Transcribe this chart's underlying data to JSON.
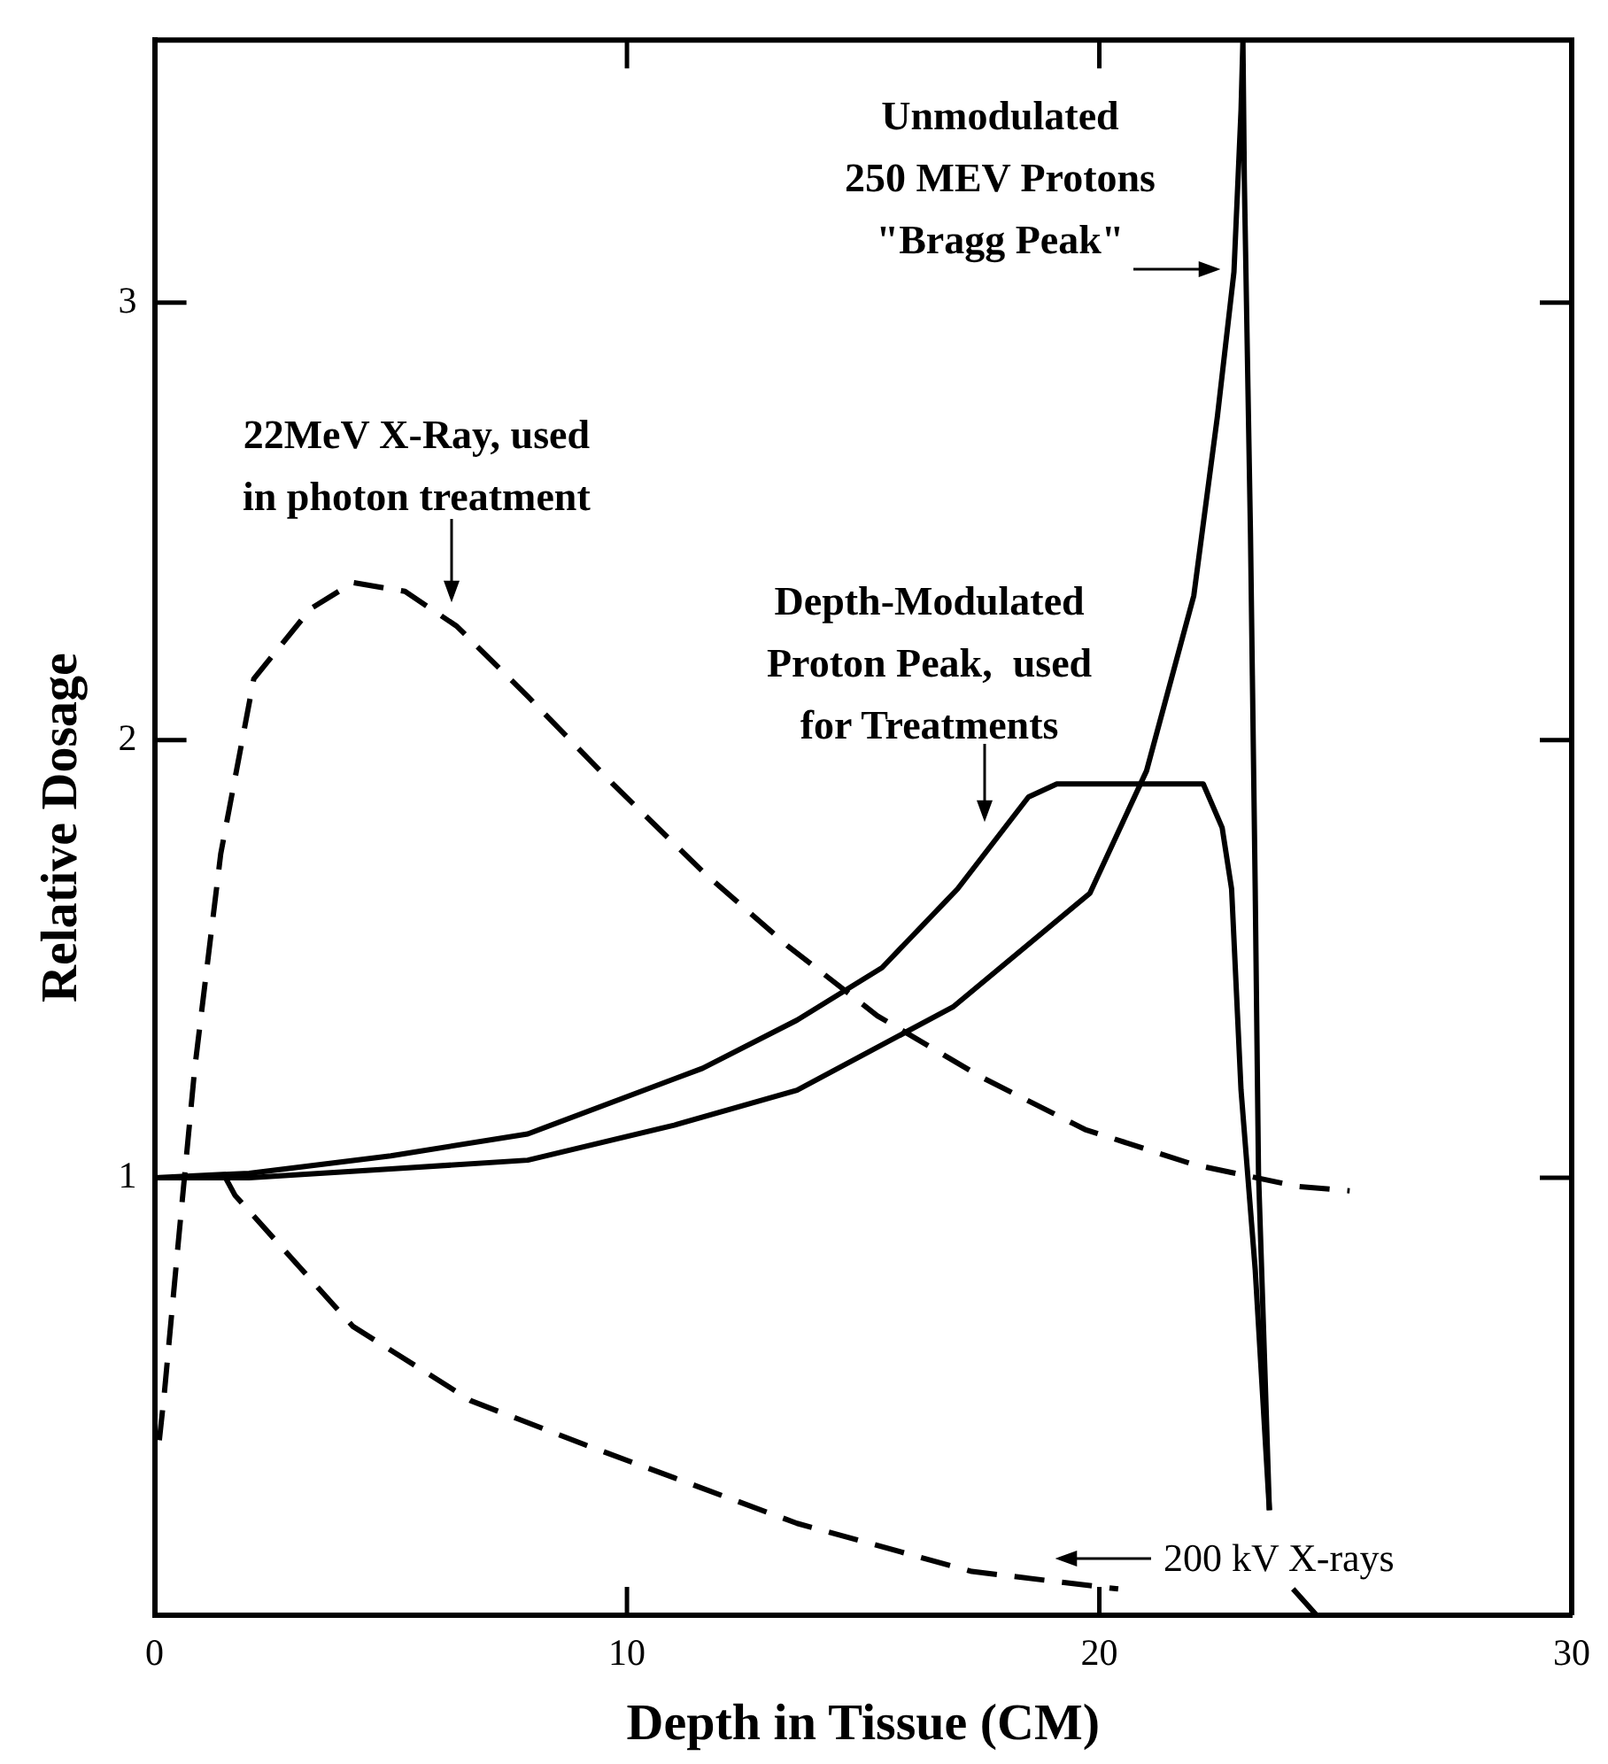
{
  "chart_data": {
    "type": "line",
    "xlabel": "Depth in Tissue (CM)",
    "ylabel": "Relative Dosage",
    "xlim": [
      0,
      30
    ],
    "xticks": [
      0,
      10,
      20,
      30
    ],
    "ylim": [
      0,
      3.6
    ],
    "yticks": [
      1,
      2,
      3
    ],
    "marker": "none",
    "legend": false,
    "series": [
      {
        "color": "#000000",
        "line_style": "dashed",
        "x": [
          0.1,
          0.2,
          0.5,
          0.85,
          1.4,
          2.1,
          3.3,
          4.2,
          5.3,
          6.4,
          7.9,
          9.7,
          11.6,
          13.4,
          15.3,
          17.5,
          19.7,
          22,
          24.2,
          25.3
        ],
        "values": [
          0.4,
          0.5,
          0.85,
          1.25,
          1.74,
          2.14,
          2.3,
          2.36,
          2.34,
          2.26,
          2.1,
          1.9,
          1.7,
          1.53,
          1.37,
          1.23,
          1.11,
          1.03,
          0.98,
          0.97
        ]
      },
      {
        "color": "#000000",
        "line_style": "dashed",
        "x": [
          1.5,
          1.7,
          4.2,
          6.7,
          9.1,
          13.6,
          17.3,
          20.4
        ],
        "values": [
          1.0,
          0.96,
          0.66,
          0.49,
          0.39,
          0.21,
          0.1,
          0.06
        ]
      },
      {
        "color": "#000000",
        "line_style": "solid",
        "x": [
          0,
          2,
          5,
          7.9,
          11,
          13.6,
          16.9,
          19.8,
          21,
          22,
          22.5,
          22.85,
          23,
          23.04,
          23.07,
          23.2,
          23.3,
          23.37,
          23.6,
          23.8,
          24.1,
          24.6
        ],
        "values": [
          1.0,
          1.0,
          1.02,
          1.04,
          1.12,
          1.2,
          1.39,
          1.65,
          1.93,
          2.33,
          2.74,
          3.07,
          3.44,
          3.6,
          3.28,
          2.47,
          1.66,
          1.01,
          0.24,
          null,
          0.06,
          0
        ]
      },
      {
        "color": "#000000",
        "line_style": "solid",
        "x": [
          0,
          2,
          5,
          7.9,
          11.6,
          13.6,
          15.4,
          17,
          18.5,
          19.1,
          22.2,
          22.6,
          22.8,
          23,
          23.3,
          23.6
        ],
        "values": [
          1.0,
          1.01,
          1.05,
          1.1,
          1.25,
          1.36,
          1.48,
          1.66,
          1.87,
          1.9,
          1.9,
          1.8,
          1.66,
          1.2,
          0.79,
          0.24
        ]
      }
    ],
    "annotations": [
      "22MeV X-Ray, used\nin photon treatment",
      "Depth-Modulated\nProton Peak,  used\nfor Treatments",
      "Unmodulated\n250 MEV Protons\n\"Bragg Peak\"",
      "200 kV X-rays"
    ]
  }
}
